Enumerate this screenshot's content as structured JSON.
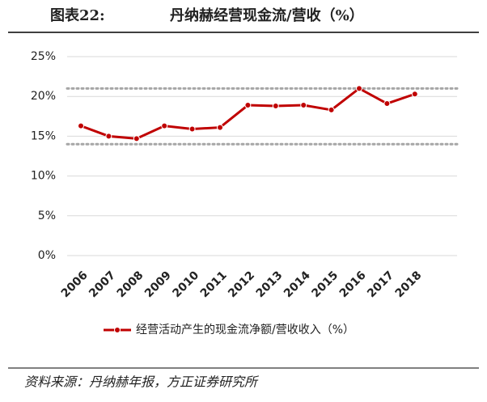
{
  "chart_data": {
    "type": "line",
    "title_label": "图表22:",
    "title": "丹纳赫经营现金流/营收（%）",
    "source": "资料来源：丹纳赫年报，方正证券研究所",
    "categories": [
      "2006",
      "2007",
      "2008",
      "2009",
      "2010",
      "2011",
      "2012",
      "2013",
      "2014",
      "2015",
      "2016",
      "2017",
      "2018"
    ],
    "series": [
      {
        "name": "经营活动产生的现金流净额/营收收入（%）",
        "color": "#c00000",
        "values": [
          16.3,
          15.0,
          14.7,
          16.3,
          15.9,
          16.1,
          18.9,
          18.8,
          18.9,
          18.3,
          21.0,
          19.1,
          20.3
        ]
      }
    ],
    "reference_lines": [
      21,
      14
    ],
    "ylim": [
      0,
      25
    ],
    "yticks": [
      {
        "value": 0,
        "label": "0%"
      },
      {
        "value": 5,
        "label": "5%"
      },
      {
        "value": 10,
        "label": "10%"
      },
      {
        "value": 15,
        "label": "15%"
      },
      {
        "value": 20,
        "label": "20%"
      },
      {
        "value": 25,
        "label": "25%"
      }
    ],
    "grid": true
  }
}
